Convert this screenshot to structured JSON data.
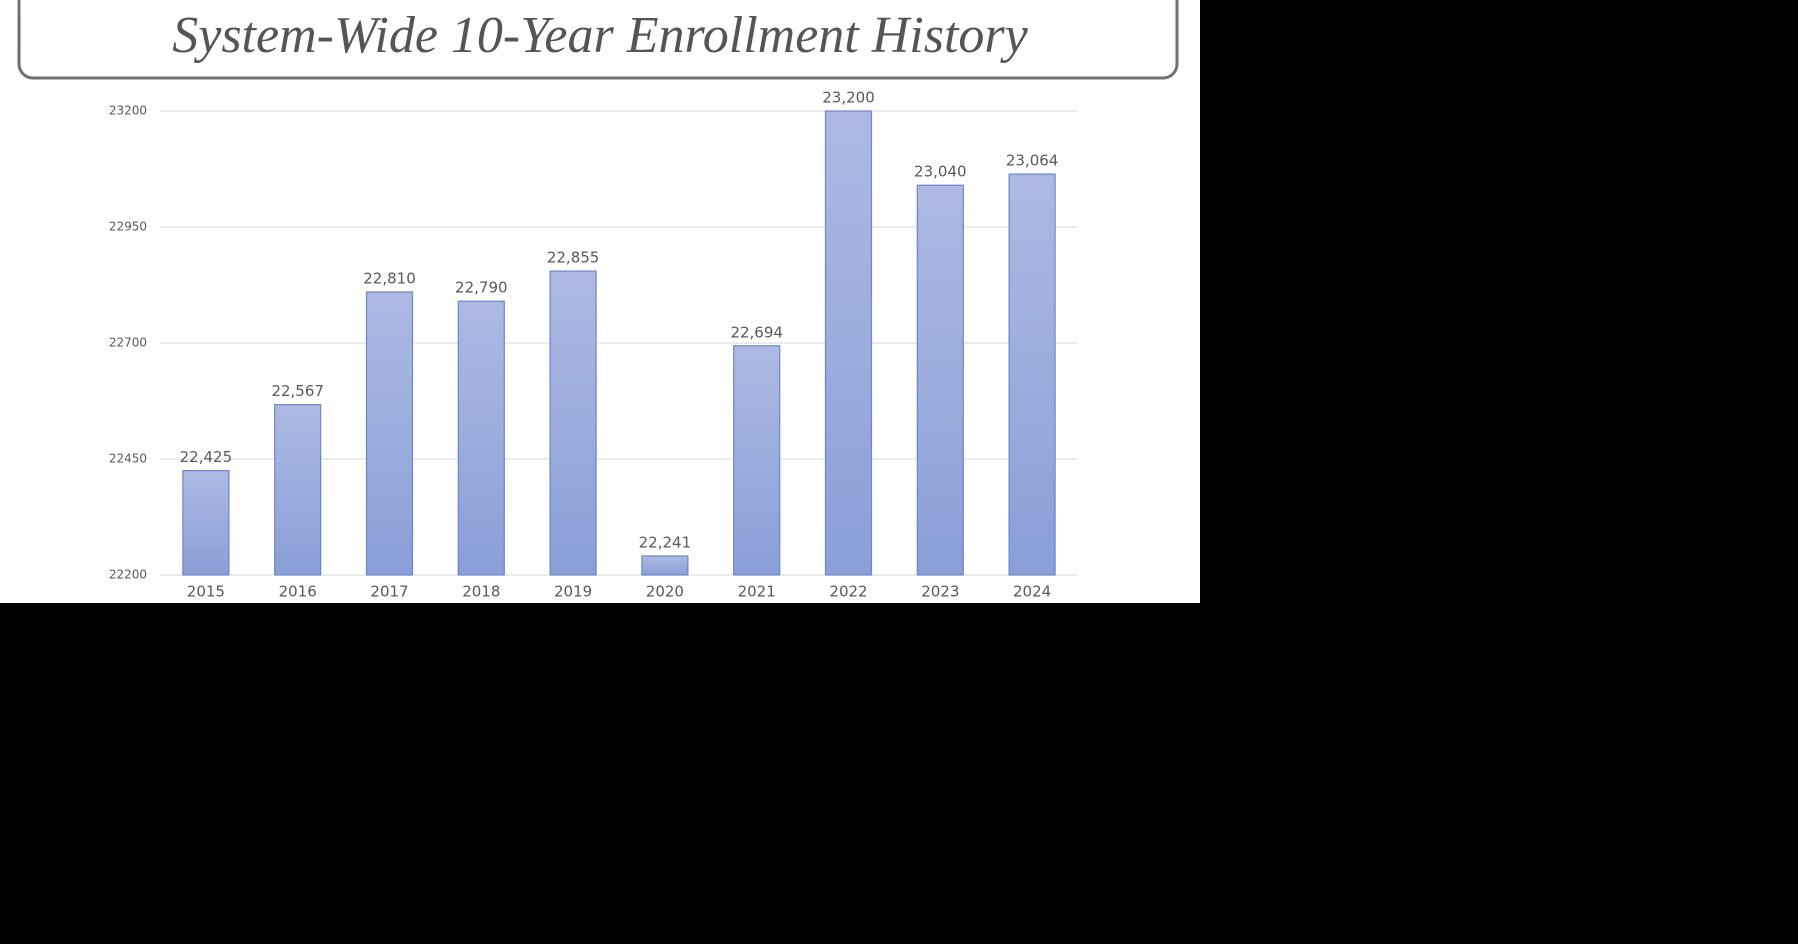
{
  "chart_data": {
    "type": "bar",
    "title": "System-Wide 10-Year Enrollment History",
    "categories": [
      "2015",
      "2016",
      "2017",
      "2018",
      "2019",
      "2020",
      "2021",
      "2022",
      "2023",
      "2024"
    ],
    "values": [
      22425,
      22567,
      22810,
      22790,
      22855,
      22241,
      22694,
      23200,
      23040,
      23064
    ],
    "value_labels": [
      "22,425",
      "22,567",
      "22,810",
      "22,790",
      "22,855",
      "22,241",
      "22,694",
      "23,200",
      "23,040",
      "23,064"
    ],
    "color": "#9aaade",
    "ylim": [
      22200,
      23200
    ],
    "yticks": [
      22200,
      22450,
      22700,
      22950,
      23200
    ],
    "grid": true
  }
}
